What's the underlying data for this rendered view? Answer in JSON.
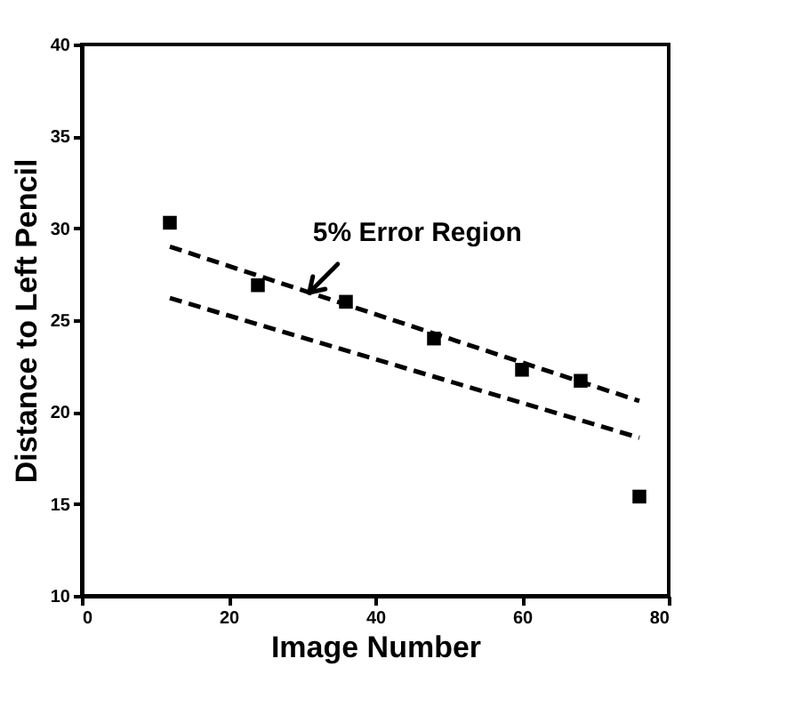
{
  "chart_data": {
    "type": "scatter",
    "xlabel": "Image Number",
    "ylabel": "Distance to Left Pencil",
    "xlim": [
      0,
      80
    ],
    "xticks": [
      0,
      20,
      40,
      60,
      80
    ],
    "ylim": [
      10,
      40
    ],
    "yticks": [
      10,
      15,
      20,
      25,
      30,
      35,
      40
    ],
    "grid": false,
    "legend": false,
    "annotations": [
      {
        "text": "5% Error Region",
        "x": 31,
        "y": 26.5
      }
    ],
    "series": [
      {
        "type": "scatter",
        "marker": "square",
        "color": "#000000",
        "x": [
          12,
          24,
          36,
          48,
          60,
          68,
          76
        ],
        "values": [
          30.3,
          26.9,
          26.0,
          24.0,
          22.3,
          21.7,
          15.4
        ]
      },
      {
        "type": "line",
        "line_style": "dashed",
        "marker": "none",
        "color": "#000000",
        "x": [
          12,
          44,
          76
        ],
        "values": [
          29.0,
          24.8,
          20.6
        ]
      },
      {
        "type": "line",
        "line_style": "dashed",
        "marker": "none",
        "color": "#000000",
        "x": [
          12,
          44,
          76
        ],
        "values": [
          26.2,
          22.4,
          18.6
        ]
      }
    ]
  }
}
